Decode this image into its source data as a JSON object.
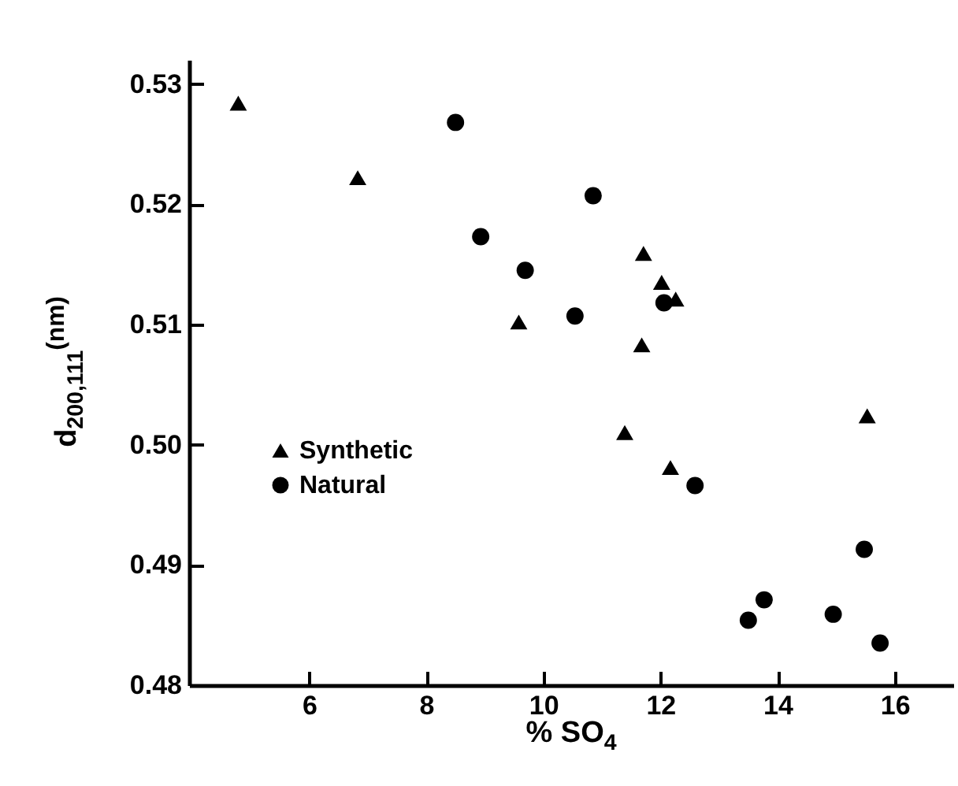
{
  "chart_data": {
    "type": "scatter",
    "xlabel": "% SO$_{4}$",
    "ylabel": "d$_{200,111}$$^{(nm)}$",
    "xlim": [
      3.95,
      17
    ],
    "ylim": [
      0.48,
      0.532
    ],
    "xticks": [
      6,
      8,
      10,
      12,
      14,
      16
    ],
    "yticks": [
      0.48,
      0.49,
      {
        "value": 0.5,
        "label": "0.50"
      },
      0.51,
      0.52,
      0.53
    ],
    "grid": false,
    "legend": "left",
    "series": [
      {
        "name": "Synthetic",
        "color": "#000000",
        "marker": "triangle",
        "x": [
          4.79,
          6.83,
          9.58,
          11.71,
          12.02,
          12.26,
          11.68,
          15.53,
          11.39,
          12.17
        ],
        "values": [
          0.5284,
          0.5222,
          0.5102,
          0.5159,
          0.5135,
          0.5121,
          0.5083,
          0.5024,
          0.501,
          0.4981
        ]
      },
      {
        "name": "Natural",
        "color": "#000000",
        "marker": "circle",
        "x": [
          8.5,
          8.93,
          9.69,
          10.85,
          10.54,
          12.06,
          12.59,
          15.48,
          13.77,
          13.5,
          14.95,
          15.75
        ],
        "values": [
          0.5268,
          0.5173,
          0.5145,
          0.5207,
          0.5107,
          0.5118,
          0.4966,
          0.4913,
          0.4871,
          0.4854,
          0.4859,
          0.4835
        ]
      }
    ]
  }
}
